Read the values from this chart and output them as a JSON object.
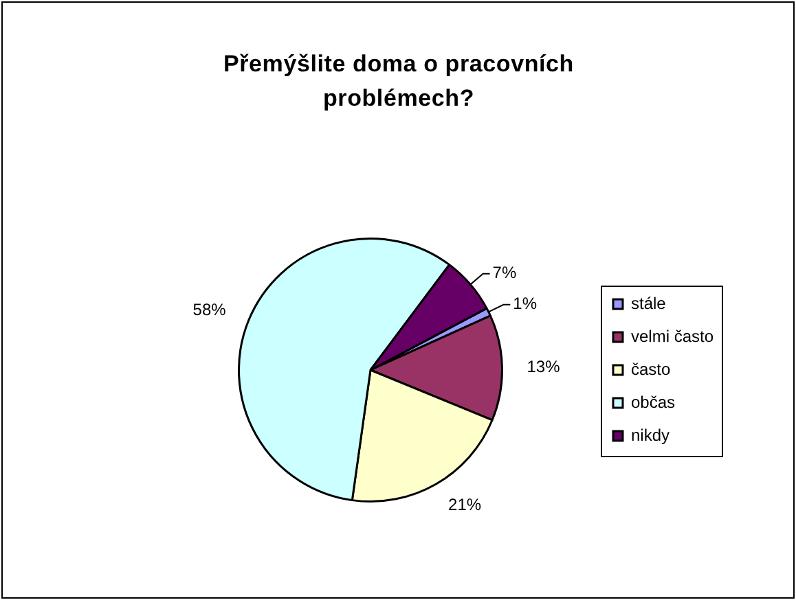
{
  "chart_data": {
    "type": "pie",
    "title": "Přemýšlite doma o pracovních problémech?",
    "categories": [
      "stále",
      "velmi často",
      "často",
      "občas",
      "nikdy"
    ],
    "values": [
      1,
      13,
      21,
      58,
      7
    ],
    "colors": [
      "#9999ff",
      "#993366",
      "#ffffcc",
      "#ccffff",
      "#660066"
    ],
    "value_labels": [
      "1%",
      "13%",
      "21%",
      "58%",
      "7%"
    ],
    "legend": "right"
  }
}
